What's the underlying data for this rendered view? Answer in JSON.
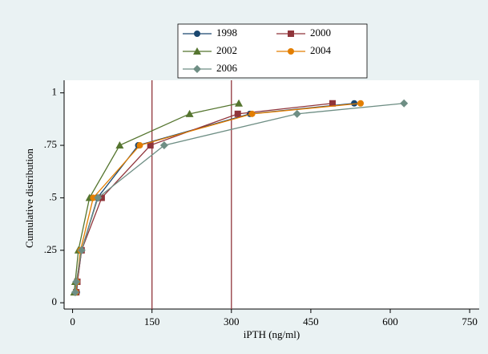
{
  "chart_data": {
    "type": "line",
    "x_label": "iPTH (ng/ml)",
    "y_label": "Cumulative distribution",
    "xlim": [
      -16,
      768
    ],
    "ylim": [
      -0.03,
      1.06
    ],
    "xticks": [
      0,
      150,
      300,
      450,
      600,
      750
    ],
    "yticks": [
      0,
      {
        "value": 0.25,
        "label": ".25"
      },
      {
        "value": 0.5,
        "label": ".5"
      },
      {
        "value": 0.75,
        "label": ".75"
      },
      1
    ],
    "xlines": [
      150,
      300
    ],
    "xline_color": "#90353b",
    "series": [
      {
        "name": "1998",
        "color": "#1a476f",
        "marker": "circle",
        "x": [
          8,
          9,
          17,
          47,
          124,
          335,
          532
        ],
        "values": [
          0.05,
          0.1,
          0.25,
          0.5,
          0.75,
          0.9,
          0.95
        ]
      },
      {
        "name": "2000",
        "color": "#90353b",
        "marker": "square",
        "x": [
          7,
          9,
          17,
          55,
          147,
          312,
          491
        ],
        "values": [
          0.05,
          0.1,
          0.25,
          0.5,
          0.75,
          0.9,
          0.95
        ]
      },
      {
        "name": "2002",
        "color": "#55752f",
        "marker": "triangle",
        "x": [
          3,
          5,
          11,
          32,
          89,
          221,
          314
        ],
        "values": [
          0.05,
          0.1,
          0.25,
          0.5,
          0.75,
          0.9,
          0.95
        ]
      },
      {
        "name": "2004",
        "color": "#e37e00",
        "marker": "circle",
        "x": [
          6,
          8,
          15,
          39,
          127,
          339,
          544
        ],
        "values": [
          0.05,
          0.1,
          0.25,
          0.5,
          0.75,
          0.9,
          0.95
        ]
      },
      {
        "name": "2006",
        "color": "#6e8e84",
        "marker": "diamond",
        "x": [
          5,
          7,
          17,
          48,
          173,
          424,
          626
        ],
        "values": [
          0.05,
          0.1,
          0.25,
          0.5,
          0.75,
          0.9,
          0.95
        ]
      }
    ]
  }
}
